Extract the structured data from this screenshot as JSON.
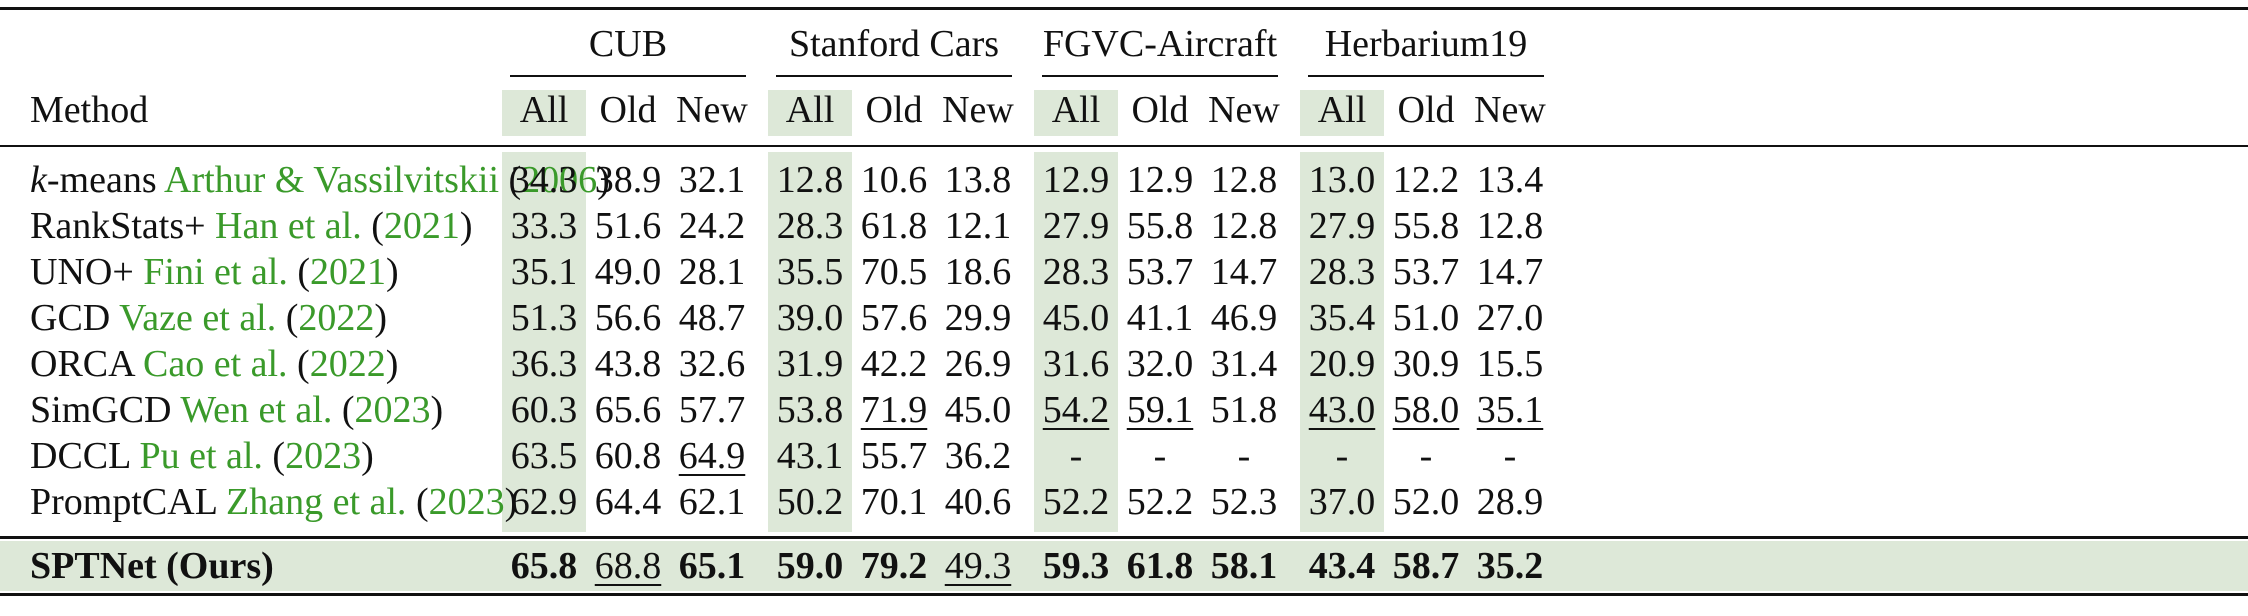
{
  "table": {
    "method_header": "Method",
    "groups": [
      "CUB",
      "Stanford Cars",
      "FGVC-Aircraft",
      "Herbarium19"
    ],
    "subheaders": [
      "All",
      "Old",
      "New"
    ],
    "rows": [
      {
        "name": "-means",
        "name_prefix": "k",
        "cite_name": "Arthur & Vassilvitskii",
        "cite_year": "2006",
        "values": [
          "34.3",
          "38.9",
          "32.1",
          "12.8",
          "10.6",
          "13.8",
          "12.9",
          "12.9",
          "12.8",
          "13.0",
          "12.2",
          "13.4"
        ],
        "underline": []
      },
      {
        "name": "RankStats+",
        "name_prefix": "",
        "cite_name": "Han et al.",
        "cite_year": "2021",
        "values": [
          "33.3",
          "51.6",
          "24.2",
          "28.3",
          "61.8",
          "12.1",
          "27.9",
          "55.8",
          "12.8",
          "27.9",
          "55.8",
          "12.8"
        ],
        "underline": []
      },
      {
        "name": "UNO+",
        "name_prefix": "",
        "cite_name": "Fini et al.",
        "cite_year": "2021",
        "values": [
          "35.1",
          "49.0",
          "28.1",
          "35.5",
          "70.5",
          "18.6",
          "28.3",
          "53.7",
          "14.7",
          "28.3",
          "53.7",
          "14.7"
        ],
        "underline": []
      },
      {
        "name": "GCD",
        "name_prefix": "",
        "cite_name": "Vaze et al.",
        "cite_year": "2022",
        "values": [
          "51.3",
          "56.6",
          "48.7",
          "39.0",
          "57.6",
          "29.9",
          "45.0",
          "41.1",
          "46.9",
          "35.4",
          "51.0",
          "27.0"
        ],
        "underline": []
      },
      {
        "name": "ORCA",
        "name_prefix": "",
        "cite_name": "Cao et al.",
        "cite_year": "2022",
        "values": [
          "36.3",
          "43.8",
          "32.6",
          "31.9",
          "42.2",
          "26.9",
          "31.6",
          "32.0",
          "31.4",
          "20.9",
          "30.9",
          "15.5"
        ],
        "underline": []
      },
      {
        "name": "SimGCD",
        "name_prefix": "",
        "cite_name": "Wen et al.",
        "cite_year": "2023",
        "values": [
          "60.3",
          "65.6",
          "57.7",
          "53.8",
          "71.9",
          "45.0",
          "54.2",
          "59.1",
          "51.8",
          "43.0",
          "58.0",
          "35.1"
        ],
        "underline": [
          4,
          6,
          7,
          9,
          10,
          11
        ]
      },
      {
        "name": "DCCL",
        "name_prefix": "",
        "cite_name": "Pu et al.",
        "cite_year": "2023",
        "values": [
          "63.5",
          "60.8",
          "64.9",
          "43.1",
          "55.7",
          "36.2",
          "-",
          "-",
          "-",
          "-",
          "-",
          "-"
        ],
        "underline": [
          2
        ]
      },
      {
        "name": "PromptCAL",
        "name_prefix": "",
        "cite_name": "Zhang et al.",
        "cite_year": "2023",
        "values": [
          "62.9",
          "64.4",
          "62.1",
          "50.2",
          "70.1",
          "40.6",
          "52.2",
          "52.2",
          "52.3",
          "37.0",
          "52.0",
          "28.9"
        ],
        "underline": []
      }
    ],
    "ours": {
      "name": "SPTNet (Ours)",
      "values": [
        "65.8",
        "68.8",
        "65.1",
        "59.0",
        "79.2",
        "49.3",
        "59.3",
        "61.8",
        "58.1",
        "43.4",
        "58.7",
        "35.2"
      ],
      "underline": [
        1,
        5
      ],
      "bold": [
        0,
        2,
        3,
        4,
        6,
        7,
        8,
        9,
        10,
        11
      ]
    },
    "colors": {
      "highlight": "#dde8d8",
      "citation": "#3a9a2a"
    }
  }
}
